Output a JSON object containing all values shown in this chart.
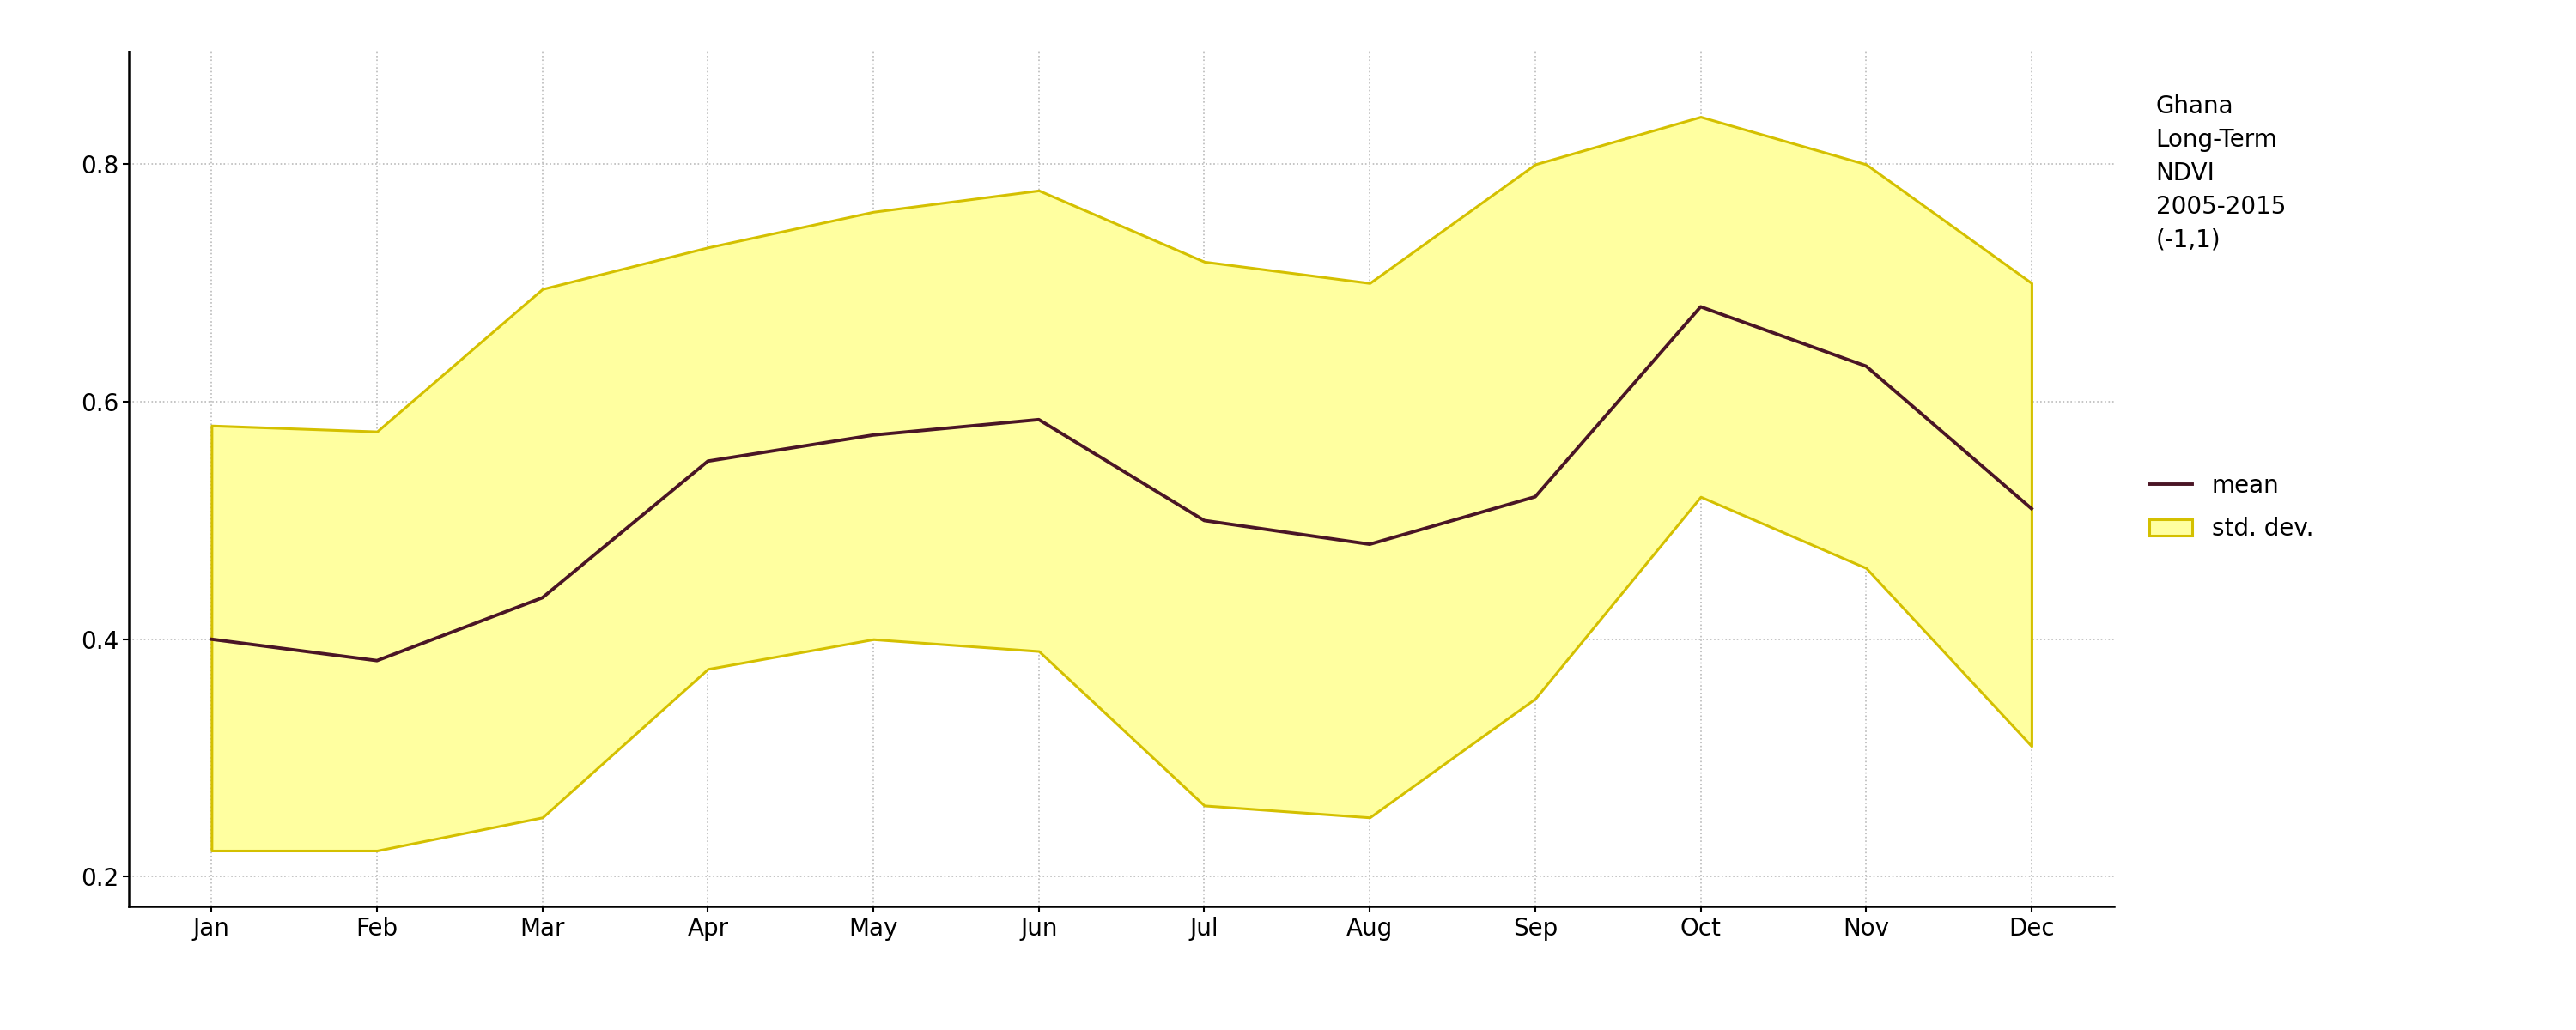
{
  "months": [
    "Jan",
    "Feb",
    "Mar",
    "Apr",
    "May",
    "Jun",
    "Jul",
    "Aug",
    "Sep",
    "Oct",
    "Nov",
    "Dec"
  ],
  "mean": [
    0.4,
    0.382,
    0.435,
    0.55,
    0.572,
    0.585,
    0.5,
    0.48,
    0.52,
    0.68,
    0.63,
    0.51
  ],
  "upper": [
    0.58,
    0.575,
    0.695,
    0.73,
    0.76,
    0.778,
    0.718,
    0.7,
    0.8,
    0.84,
    0.8,
    0.7
  ],
  "lower": [
    0.222,
    0.222,
    0.25,
    0.375,
    0.4,
    0.39,
    0.26,
    0.25,
    0.35,
    0.52,
    0.46,
    0.31
  ],
  "mean_color": "#4a1525",
  "band_color": "#ffffa0",
  "band_edge_color": "#d4c000",
  "title_lines": [
    "Ghana",
    "Long-Term",
    "NDVI",
    "2005-2015",
    "(-1,1)"
  ],
  "ylim": [
    0.175,
    0.895
  ],
  "yticks": [
    0.2,
    0.4,
    0.6,
    0.8
  ],
  "mean_linewidth": 2.8,
  "band_linewidth": 2.2,
  "legend_mean_label": "mean",
  "legend_std_label": "std. dev.",
  "background_color": "#ffffff",
  "grid_color": "#bbbbbb",
  "axes_linewidth": 1.8,
  "tick_labelsize": 20,
  "legend_fontsize": 20,
  "title_fontsize": 20
}
